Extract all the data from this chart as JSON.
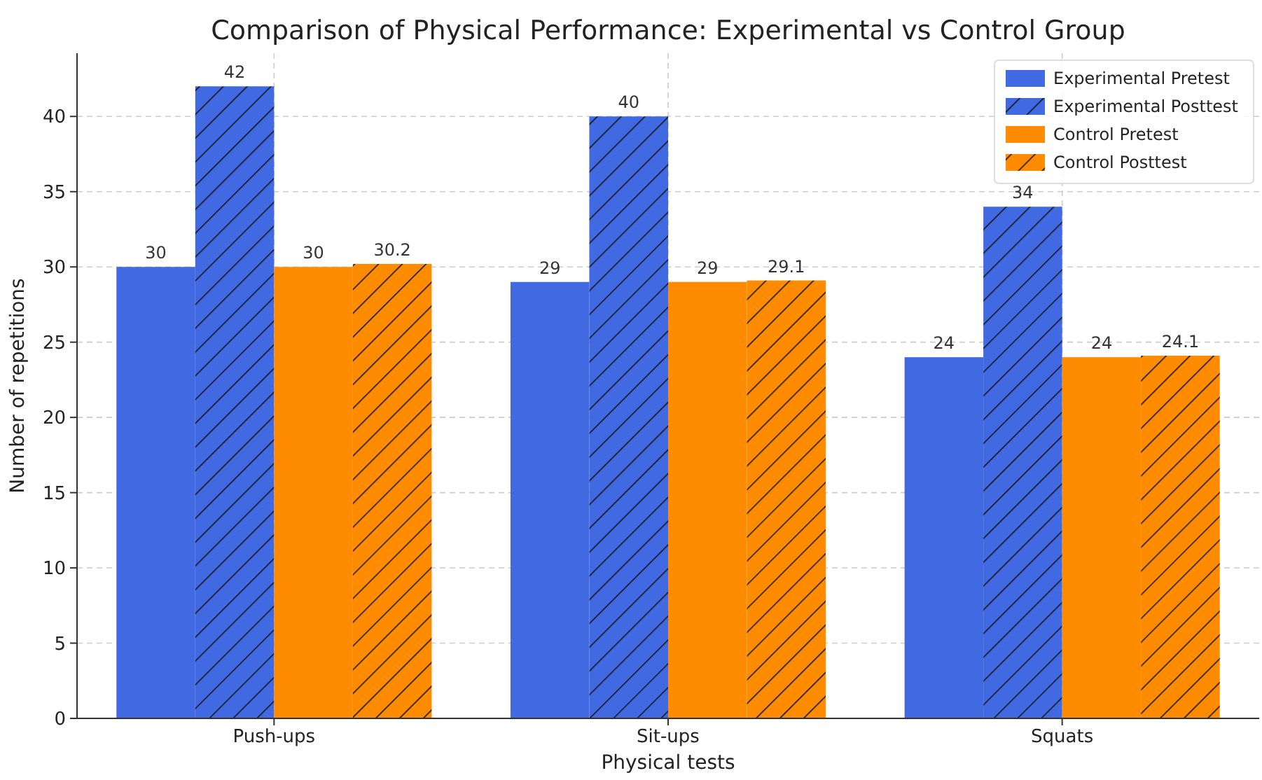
{
  "chart_data": {
    "type": "bar",
    "title": "Comparison of Physical Performance: Experimental vs Control Group",
    "xlabel": "Physical tests",
    "ylabel": "Number of repetitions",
    "categories": [
      "Push-ups",
      "Sit-ups",
      "Squats"
    ],
    "series": [
      {
        "name": "Experimental Pretest",
        "color": "#4169e1",
        "values": [
          30,
          29,
          24
        ]
      },
      {
        "name": "Experimental Posttest",
        "color": "#4169e1",
        "values": [
          42,
          40,
          34
        ]
      },
      {
        "name": "Control Pretest",
        "color": "#ff8c00",
        "values": [
          30,
          29,
          24
        ]
      },
      {
        "name": "Control Posttest",
        "color": "#ff8c00",
        "values": [
          30.2,
          29.1,
          24.1
        ]
      }
    ],
    "ylim": [
      0,
      44.2
    ],
    "yticks": [
      0,
      5,
      10,
      15,
      20,
      25,
      30,
      35,
      40
    ],
    "grid": true,
    "legend": "top right",
    "data_labels": true
  }
}
